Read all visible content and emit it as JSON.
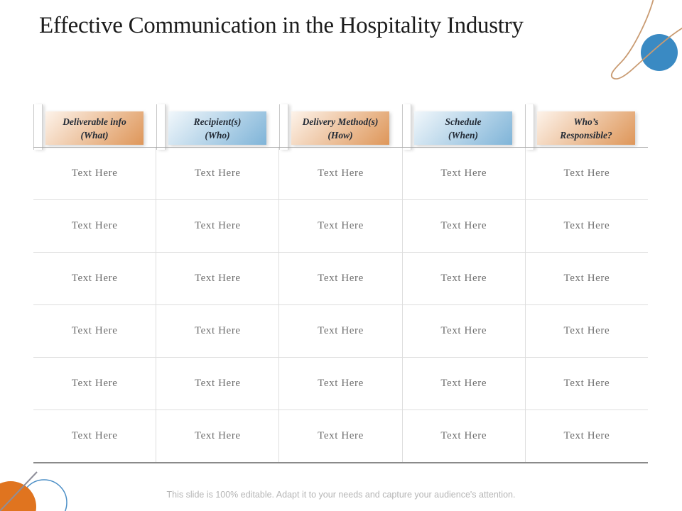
{
  "slide": {
    "title": "Effective Communication in the Hospitality Industry",
    "footer": "This slide is 100% editable. Adapt it to your needs and capture your audience's attention."
  },
  "table": {
    "columns": [
      {
        "line1": "Deliverable info",
        "line2": "(What)",
        "palette": "orange"
      },
      {
        "line1": "Recipient(s)",
        "line2": "(Who)",
        "palette": "blue"
      },
      {
        "line1": "Delivery Method(s)",
        "line2": "(How)",
        "palette": "orange"
      },
      {
        "line1": "Schedule",
        "line2": "(When)",
        "palette": "blue"
      },
      {
        "line1": "Who’s",
        "line2": "Responsible?",
        "palette": "orange"
      }
    ],
    "rows": [
      [
        "Text Here",
        "Text Here",
        "Text Here",
        "Text Here",
        "Text Here"
      ],
      [
        "Text Here",
        "Text Here",
        "Text Here",
        "Text Here",
        "Text Here"
      ],
      [
        "Text Here",
        "Text Here",
        "Text Here",
        "Text Here",
        "Text Here"
      ],
      [
        "Text Here",
        "Text Here",
        "Text Here",
        "Text Here",
        "Text Here"
      ],
      [
        "Text Here",
        "Text Here",
        "Text Here",
        "Text Here",
        "Text Here"
      ],
      [
        "Text Here",
        "Text Here",
        "Text Here",
        "Text Here",
        "Text Here"
      ]
    ]
  },
  "colors": {
    "orange_gradient_start": "#fdf3ea",
    "orange_gradient_end": "#de9659",
    "blue_gradient_start": "#f1f7fb",
    "blue_gradient_end": "#7fb4d8",
    "header_text": "#232b36",
    "body_text": "#6f6f6f",
    "accent_orange_circle": "#e0741f",
    "accent_blue_circle": "#3a8ac3",
    "curve_line": "#c99b72",
    "gray_line": "#8e8e99"
  }
}
